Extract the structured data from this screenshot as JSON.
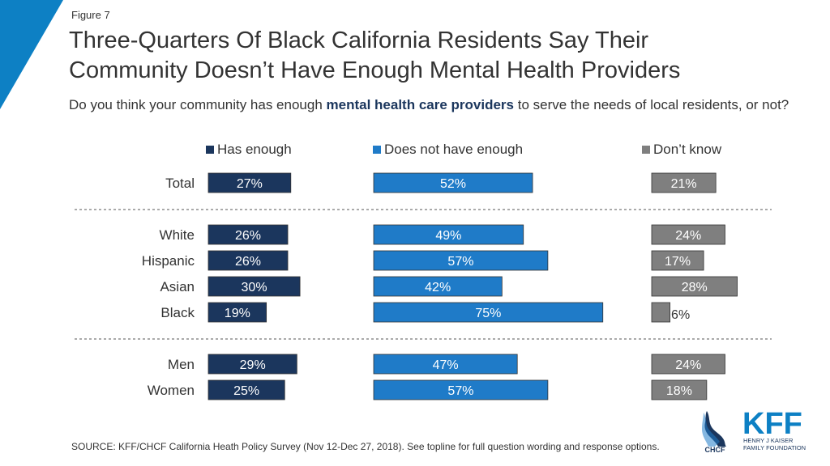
{
  "figure_label": "Figure 7",
  "title_line1": "Three-Quarters Of Black California Residents Say Their",
  "title_line2": "Community Doesn’t Have Enough Mental Health Providers",
  "subtitle_pre": "Do you think your community has enough ",
  "subtitle_bold": "mental health care providers",
  "subtitle_post": " to serve the needs of local residents, or not?",
  "source": "SOURCE: KFF/CHCF California Heath Policy Survey (Nov 12-Dec 27, 2018). See topline for full question wording and response options.",
  "logos": {
    "chcf": "CHCF",
    "kff": "KFF",
    "kff_line1": "HENRY J KAISER",
    "kff_line2": "FAMILY FOUNDATION"
  },
  "colors": {
    "has_enough": "#1b365d",
    "not_enough": "#1f7bc8",
    "dont_know": "#7f7f7f",
    "accent": "#0d80c4"
  },
  "chart_data": {
    "type": "bar",
    "orientation": "horizontal",
    "categories": [
      "Total",
      "White",
      "Hispanic",
      "Asian",
      "Black",
      "Men",
      "Women"
    ],
    "groups": [
      [
        "Total"
      ],
      [
        "White",
        "Hispanic",
        "Asian",
        "Black"
      ],
      [
        "Men",
        "Women"
      ]
    ],
    "series": [
      {
        "name": "Has enough",
        "values": [
          27,
          26,
          26,
          30,
          19,
          29,
          25
        ],
        "labels": [
          "27%",
          "26%",
          "26%",
          "30%",
          "19%",
          "29%",
          "25%"
        ]
      },
      {
        "name": "Does not have enough",
        "values": [
          52,
          49,
          57,
          42,
          75,
          47,
          57
        ],
        "labels": [
          "52%",
          "49%",
          "57%",
          "42%",
          "75%",
          "47%",
          "57%"
        ]
      },
      {
        "name": "Don’t know",
        "values": [
          21,
          24,
          17,
          28,
          6,
          24,
          18
        ],
        "labels": [
          "21%",
          "24%",
          "17%",
          "28%",
          "6%",
          "24%",
          "18%"
        ]
      }
    ],
    "legend_position": "top"
  }
}
